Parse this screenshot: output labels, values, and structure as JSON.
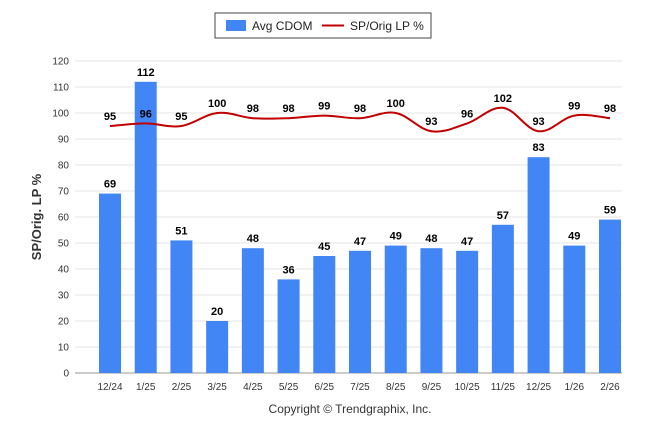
{
  "chart_data": {
    "type": "bar",
    "categories": [
      "12/24",
      "1/25",
      "2/25",
      "3/25",
      "4/25",
      "5/25",
      "6/25",
      "7/25",
      "8/25",
      "9/25",
      "10/25",
      "11/25",
      "12/25",
      "1/26",
      "2/26"
    ],
    "series": [
      {
        "name": "Avg CDOM",
        "type": "bar",
        "color": "#4285f4",
        "values": [
          69,
          112,
          51,
          20,
          48,
          36,
          45,
          47,
          49,
          48,
          47,
          57,
          83,
          49,
          59
        ]
      },
      {
        "name": "SP/Orig LP %",
        "type": "line",
        "color": "#c00000",
        "values": [
          95,
          96,
          95,
          100,
          98,
          98,
          99,
          98,
          100,
          93,
          96,
          102,
          93,
          99,
          98
        ]
      }
    ],
    "title": "",
    "xlabel": "",
    "ylabel": "SP/Orig. LP %",
    "ylim": [
      0,
      120
    ],
    "yticks": [
      0,
      10,
      20,
      30,
      40,
      50,
      60,
      70,
      80,
      90,
      100,
      110,
      120
    ],
    "grid": true,
    "legend": "top-center"
  },
  "footer": {
    "copyright": "Copyright © Trendgraphix, Inc."
  }
}
